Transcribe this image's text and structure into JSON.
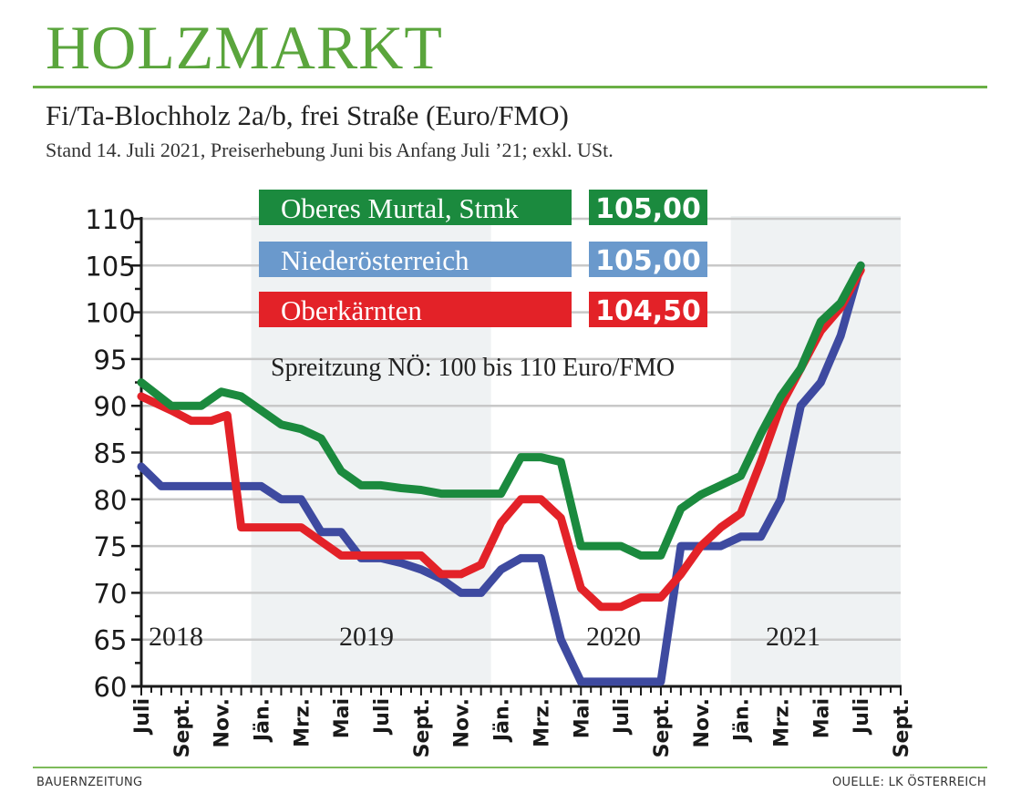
{
  "header": {
    "title": "HOLZMARKT",
    "subtitle": "Fi/Ta-Blochholz 2a/b, frei Straße (Euro/FMO)",
    "note": "Stand 14. Juli 2021, Preiserhebung Juni bis Anfang Juli ’21; exkl. USt."
  },
  "footer": {
    "left": "BAUERNZEITUNG",
    "right": "OUELLE: LK ÖSTERREICH"
  },
  "colors": {
    "brand_green": "#5aa53c",
    "band": "#eff2f3",
    "grid": "#c8c8c8"
  },
  "chart_data": {
    "type": "line",
    "title": "Fi/Ta-Blochholz 2a/b, frei Straße (Euro/FMO)",
    "xlabel": "",
    "ylabel": "Euro/FMO",
    "ylim": [
      60,
      110
    ],
    "yticks": [
      110,
      105,
      100,
      95,
      90,
      85,
      80,
      75,
      70,
      65,
      60
    ],
    "x_unit": "months since Juli 2018",
    "xlim": [
      0,
      38
    ],
    "xtick_labels": [
      "Juli",
      "Sept.",
      "Nov.",
      "Jän.",
      "Mrz.",
      "Mai",
      "Juli",
      "Sept.",
      "Nov.",
      "Jän.",
      "Mrz.",
      "Mai",
      "Juli",
      "Sept.",
      "Nov.",
      "Jän.",
      "Mrz.",
      "Mai",
      "Juli",
      "Sept."
    ],
    "year_bands": [
      {
        "label": "2018",
        "from": 0,
        "to": 5.5,
        "shaded": false
      },
      {
        "label": "2019",
        "from": 5.5,
        "to": 17.5,
        "shaded": true
      },
      {
        "label": "2020",
        "from": 17.5,
        "to": 29.5,
        "shaded": false
      },
      {
        "label": "2021",
        "from": 29.5,
        "to": 38,
        "shaded": true
      }
    ],
    "grid": true,
    "annotation": "Spreitzung NÖ: 100 bis 110 Euro/FMO",
    "series": [
      {
        "name": "Oberes Murtal, Stmk",
        "current": "105,00",
        "color": "#1b8a3e",
        "x": [
          0,
          1.5,
          3,
          4,
          5,
          6,
          7,
          8,
          9,
          10,
          11,
          12,
          13,
          14,
          15,
          16,
          17,
          18,
          19,
          20,
          21,
          22,
          23,
          24,
          25,
          26,
          27,
          28,
          29,
          30,
          31,
          32,
          33,
          34,
          35,
          36
        ],
        "values": [
          92.5,
          90,
          90,
          91.5,
          91,
          89.5,
          88,
          87.5,
          86.5,
          83,
          81.5,
          81.5,
          81.2,
          81,
          80.6,
          80.6,
          80.6,
          80.6,
          84.5,
          84.5,
          84,
          75,
          75,
          75,
          74,
          74,
          79,
          80.5,
          81.5,
          82.5,
          87,
          91,
          94,
          99,
          101,
          105
        ]
      },
      {
        "name": "Niederösterreich",
        "current": "105,00",
        "color": "#3e4aa0",
        "legend_color": "#6a99cc",
        "x": [
          0,
          1,
          3,
          5,
          6,
          7,
          8,
          9,
          10,
          11,
          12,
          13,
          14,
          15,
          16,
          17,
          18,
          19,
          20,
          21,
          22,
          23,
          24,
          25,
          26,
          27,
          28,
          29,
          30,
          31,
          32,
          33,
          34,
          35,
          36
        ],
        "values": [
          83.5,
          81.4,
          81.4,
          81.4,
          81.4,
          80,
          80,
          76.5,
          76.5,
          73.7,
          73.7,
          73.2,
          72.5,
          71.5,
          70,
          70,
          72.5,
          73.7,
          73.7,
          65,
          60.5,
          60.5,
          60.5,
          60.5,
          60.5,
          75,
          75,
          75,
          76,
          76,
          80,
          90,
          92.5,
          97.5,
          105
        ]
      },
      {
        "name": "Oberkärnten",
        "current": "104,50",
        "color": "#e32228",
        "x": [
          0,
          1.5,
          2.5,
          3.5,
          4.3,
          5,
          6,
          7,
          8,
          9,
          10,
          11,
          12,
          13,
          14,
          15,
          16,
          17,
          18,
          19,
          20,
          21,
          22,
          23,
          24,
          25,
          26,
          27,
          28,
          29,
          30,
          31,
          32,
          33,
          34,
          35,
          36
        ],
        "values": [
          91,
          89.5,
          88.4,
          88.4,
          89,
          77,
          77,
          77,
          77,
          75.5,
          74,
          74,
          74,
          74,
          74,
          72,
          72,
          73,
          77.5,
          80,
          80,
          78,
          70.5,
          68.5,
          68.5,
          69.5,
          69.5,
          72,
          75,
          77,
          78.5,
          84,
          90,
          94,
          98,
          100.5,
          104.5
        ]
      }
    ]
  }
}
